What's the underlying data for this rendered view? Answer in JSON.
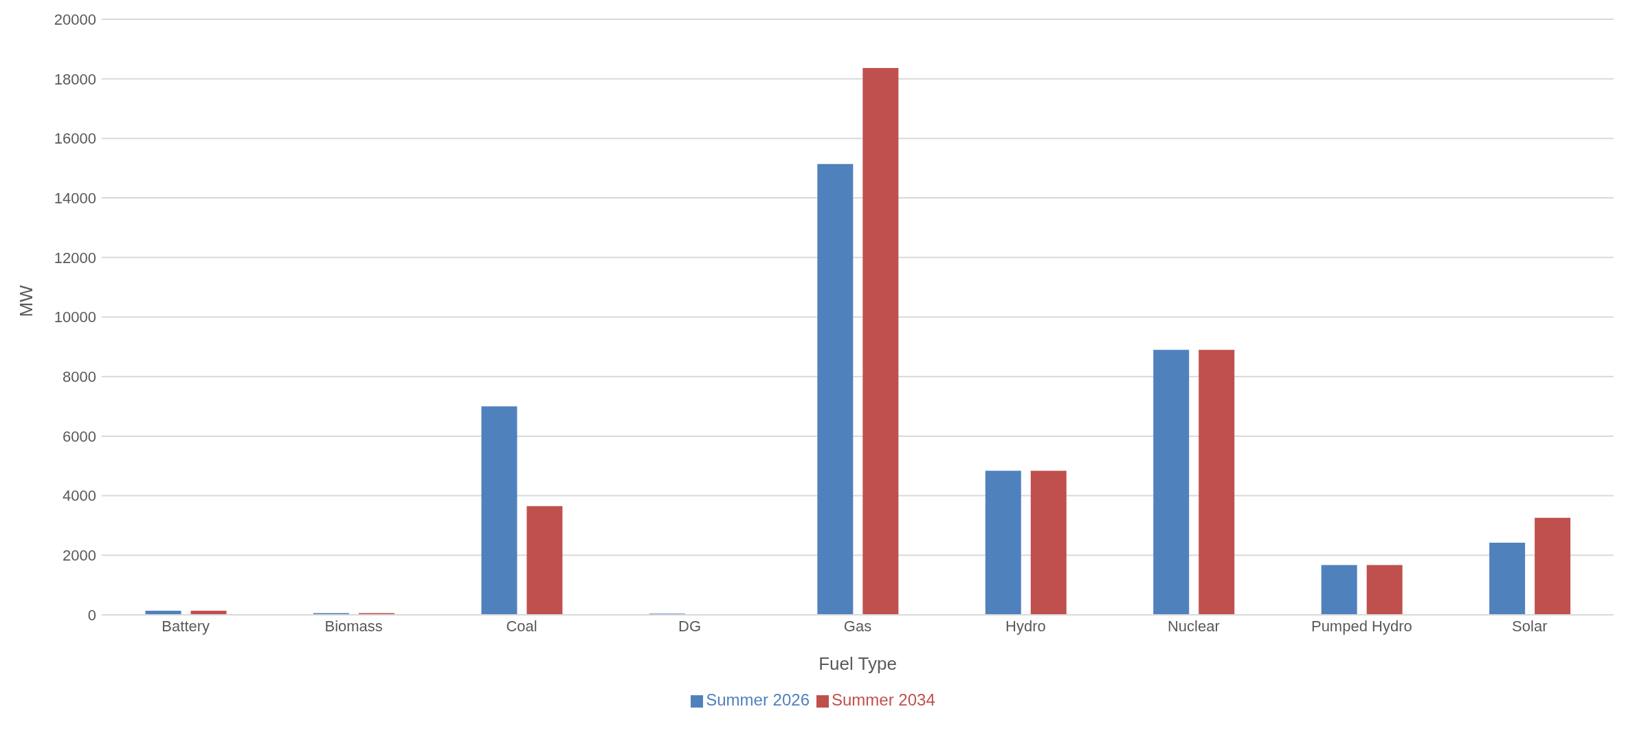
{
  "chart_data": {
    "type": "bar",
    "xlabel": "Fuel Type",
    "ylabel": "MW",
    "categories": [
      "Battery",
      "Biomass",
      "Coal",
      "DG",
      "Gas",
      "Hydro",
      "Nuclear",
      "Pumped Hydro",
      "Solar"
    ],
    "series": [
      {
        "name": "Summer 2026",
        "color": "#4f81bd",
        "values": [
          140,
          60,
          7000,
          40,
          15140,
          4840,
          8900,
          1670,
          2420
        ]
      },
      {
        "name": "Summer 2034",
        "color": "#c0504d",
        "values": [
          140,
          60,
          3650,
          0,
          18360,
          4840,
          8900,
          1670,
          3260
        ]
      }
    ],
    "ylim": [
      0,
      20000
    ],
    "yticks": [
      0,
      2000,
      4000,
      6000,
      8000,
      10000,
      12000,
      14000,
      16000,
      18000,
      20000
    ],
    "grid": "y",
    "legend": "bottom"
  }
}
